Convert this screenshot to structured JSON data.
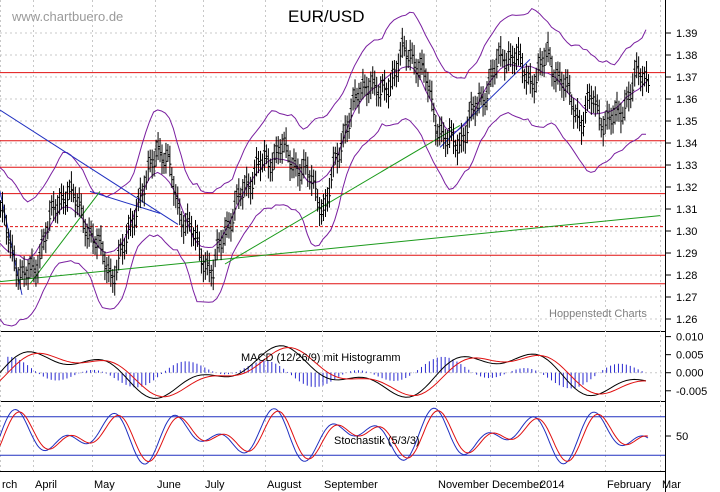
{
  "watermark": "www.chartbuero.de",
  "credit": "Hoppenstedt Charts",
  "colors": {
    "price": "#000000",
    "bands": "#7a1fa0",
    "support": "#e01010",
    "trend_blue": "#2030c0",
    "trend_green": "#1a9a1a",
    "macd_line": "#000000",
    "signal_line": "#e01010",
    "histogram": "#2a2ad0",
    "stoch_k": "#2030c0",
    "stoch_d": "#e01010",
    "grid": "#c8c8c8"
  },
  "chart_data": [
    {
      "type": "line",
      "title": "EUR/USD",
      "series": [],
      "y_ticks": [
        "1.39",
        "1.38",
        "1.37",
        "1.36",
        "1.35",
        "1.34",
        "1.33",
        "1.32",
        "1.31",
        "1.30",
        "1.29",
        "1.28",
        "1.27",
        "1.26"
      ],
      "ylim": [
        1.255,
        1.395
      ],
      "x_ticks": [
        "rch",
        "April",
        "May",
        "June",
        "July",
        "August",
        "September",
        "November",
        "December",
        "2014",
        "February",
        "Mar"
      ],
      "horizontal_levels": [
        1.372,
        1.341,
        1.329,
        1.317,
        1.302,
        1.289,
        1.276
      ],
      "close_path": [
        1.31,
        1.29,
        1.28,
        1.28,
        1.3,
        1.31,
        1.32,
        1.31,
        1.3,
        1.29,
        1.28,
        1.29,
        1.31,
        1.32,
        1.34,
        1.33,
        1.31,
        1.3,
        1.29,
        1.28,
        1.3,
        1.31,
        1.32,
        1.33,
        1.33,
        1.34,
        1.33,
        1.33,
        1.32,
        1.31,
        1.33,
        1.35,
        1.36,
        1.37,
        1.36,
        1.37,
        1.38,
        1.38,
        1.37,
        1.35,
        1.34,
        1.34,
        1.35,
        1.36,
        1.37,
        1.38,
        1.38,
        1.37,
        1.37,
        1.38,
        1.37,
        1.36,
        1.35,
        1.36,
        1.35,
        1.35,
        1.36,
        1.37,
        1.37
      ]
    },
    {
      "type": "line",
      "title": "MACD (12/26/9) mit Histogramm",
      "series": [],
      "y_ticks": [
        "0.010",
        "0.005",
        "0.000",
        "-0.005"
      ],
      "ylim": [
        -0.007,
        0.011
      ]
    },
    {
      "type": "line",
      "title": "Stochastik (5/3/3)",
      "series": [],
      "y_ticks": [
        "50"
      ],
      "levels": [
        80,
        20
      ],
      "ylim": [
        0,
        100
      ]
    }
  ]
}
